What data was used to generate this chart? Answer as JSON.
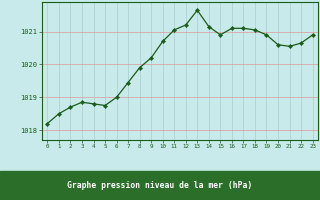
{
  "x": [
    0,
    1,
    2,
    3,
    4,
    5,
    6,
    7,
    8,
    9,
    10,
    11,
    12,
    13,
    14,
    15,
    16,
    17,
    18,
    19,
    20,
    21,
    22,
    23
  ],
  "y": [
    1018.2,
    1018.5,
    1018.7,
    1018.85,
    1018.8,
    1018.75,
    1019.0,
    1019.45,
    1019.9,
    1020.2,
    1020.7,
    1021.05,
    1021.2,
    1021.65,
    1021.15,
    1020.9,
    1021.1,
    1021.1,
    1021.05,
    1020.9,
    1020.6,
    1020.55,
    1020.65,
    1020.9
  ],
  "ylim": [
    1017.7,
    1021.9
  ],
  "yticks": [
    1018,
    1019,
    1020,
    1021
  ],
  "xticks": [
    0,
    1,
    2,
    3,
    4,
    5,
    6,
    7,
    8,
    9,
    10,
    11,
    12,
    13,
    14,
    15,
    16,
    17,
    18,
    19,
    20,
    21,
    22,
    23
  ],
  "line_color": "#1a5c1a",
  "marker_color": "#1a5c1a",
  "plot_bg_color": "#c8eaea",
  "fig_bg_color": "#c8eaea",
  "grid_color_v": "#b0cccc",
  "grid_color_h": "#e8a0a0",
  "xlabel": "Graphe pression niveau de la mer (hPa)",
  "xlabel_color": "#1a5c1a",
  "tick_color": "#1a5c1a",
  "bottom_bar_color": "#2a6e2a",
  "bottom_bar_text_color": "#ffffff"
}
